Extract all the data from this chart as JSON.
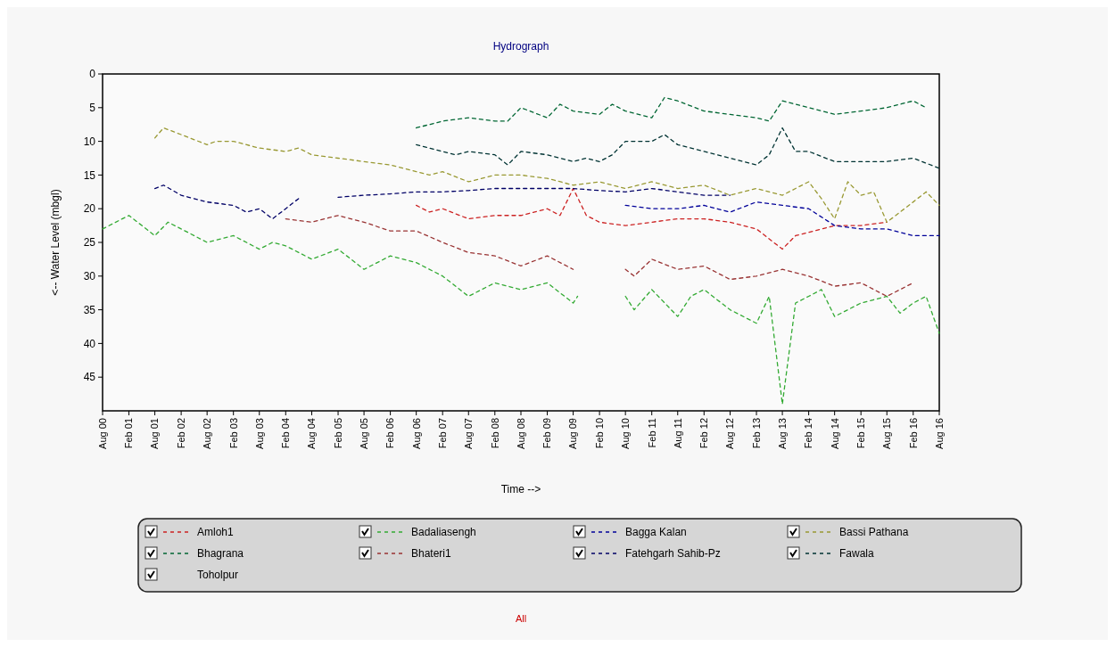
{
  "chart_data": {
    "type": "line",
    "title": "Hydrograph",
    "xlabel": "Time -->",
    "ylabel": "<-- Water Level (mbgl)",
    "annotations": [
      "All"
    ],
    "xlim": [
      "2000-08",
      "2016-08"
    ],
    "xticks": [
      {
        "value": "2000-08",
        "label": "Aug 00"
      },
      {
        "value": "2001-02",
        "label": "Feb 01"
      },
      {
        "value": "2001-08",
        "label": "Aug 01"
      },
      {
        "value": "2002-02",
        "label": "Feb 02"
      },
      {
        "value": "2002-08",
        "label": "Aug 02"
      },
      {
        "value": "2003-02",
        "label": "Feb 03"
      },
      {
        "value": "2003-08",
        "label": "Aug 03"
      },
      {
        "value": "2004-02",
        "label": "Feb 04"
      },
      {
        "value": "2004-08",
        "label": "Aug 04"
      },
      {
        "value": "2005-02",
        "label": "Feb 05"
      },
      {
        "value": "2005-08",
        "label": "Aug 05"
      },
      {
        "value": "2006-02",
        "label": "Feb 06"
      },
      {
        "value": "2006-08",
        "label": "Aug 06"
      },
      {
        "value": "2007-02",
        "label": "Feb 07"
      },
      {
        "value": "2007-08",
        "label": "Aug 07"
      },
      {
        "value": "2008-02",
        "label": "Feb 08"
      },
      {
        "value": "2008-08",
        "label": "Aug 08"
      },
      {
        "value": "2009-02",
        "label": "Feb 09"
      },
      {
        "value": "2009-08",
        "label": "Aug 09"
      },
      {
        "value": "2010-02",
        "label": "Feb 10"
      },
      {
        "value": "2010-08",
        "label": "Aug 10"
      },
      {
        "value": "2011-02",
        "label": "Feb 11"
      },
      {
        "value": "2011-08",
        "label": "Aug 11"
      },
      {
        "value": "2012-02",
        "label": "Feb 12"
      },
      {
        "value": "2012-08",
        "label": "Aug 12"
      },
      {
        "value": "2013-02",
        "label": "Feb 13"
      },
      {
        "value": "2013-08",
        "label": "Aug 13"
      },
      {
        "value": "2014-02",
        "label": "Feb 14"
      },
      {
        "value": "2014-08",
        "label": "Aug 14"
      },
      {
        "value": "2015-02",
        "label": "Feb 15"
      },
      {
        "value": "2015-08",
        "label": "Aug 15"
      },
      {
        "value": "2016-02",
        "label": "Feb 16"
      },
      {
        "value": "2016-08",
        "label": "Aug 16"
      }
    ],
    "ylim": [
      50,
      0
    ],
    "yticks": [
      0,
      5,
      10,
      15,
      20,
      25,
      30,
      35,
      40,
      45
    ],
    "grid": false,
    "legend": "bottom",
    "line_style": "dashed",
    "series": [
      {
        "name": "Amloh1",
        "color": "#cc2222",
        "x": [
          "2006-08",
          "2006-11",
          "2007-02",
          "2007-08",
          "2008-02",
          "2008-08",
          "2009-02",
          "2009-05",
          "2009-08",
          "2009-11",
          "2010-02",
          "2010-08",
          "2011-02",
          "2011-08",
          "2012-02",
          "2012-08",
          "2013-02",
          "2013-08",
          "2013-11",
          "2014-02",
          "2014-08",
          "2015-02",
          "2015-08"
        ],
        "values": [
          19.5,
          20.5,
          20,
          21.5,
          21,
          21,
          20,
          21,
          17,
          21,
          22,
          22.5,
          22,
          21.5,
          21.5,
          22,
          23,
          26,
          24,
          23.5,
          22.5,
          22.5,
          22
        ]
      },
      {
        "name": "Badaliasengh",
        "color": "#33aa33",
        "x": [
          "2000-08",
          "2001-02",
          "2001-08",
          "2001-11",
          "2002-02",
          "2002-08",
          "2003-02",
          "2003-08",
          "2003-11",
          "2004-02",
          "2004-08",
          "2005-02",
          "2005-08",
          "2006-02",
          "2006-08",
          "2007-02",
          "2007-08",
          "2008-02",
          "2008-08",
          "2009-02",
          "2009-08",
          "2009-09",
          "2010-02",
          "2010-08",
          "2010-10",
          "2011-02",
          "2011-08",
          "2011-11",
          "2012-02",
          "2012-08",
          "2013-02",
          "2013-05",
          "2013-08",
          "2013-11",
          "2014-02",
          "2014-05",
          "2014-08",
          "2015-02",
          "2015-08",
          "2015-11",
          "2016-02",
          "2016-05",
          "2016-08"
        ],
        "values": [
          23,
          21,
          24,
          22,
          23,
          25,
          24,
          26,
          25,
          25.5,
          27.5,
          26,
          29,
          27,
          28,
          30,
          33,
          31,
          32,
          31,
          34,
          33,
          null,
          33,
          35,
          32,
          36,
          33,
          32,
          35,
          37,
          33,
          49,
          34,
          33,
          32,
          36,
          34,
          33,
          35.5,
          34,
          33,
          38.5
        ]
      },
      {
        "name": "Bagga Kalan",
        "color": "#000099",
        "x": [
          "2010-08",
          "2011-02",
          "2011-08",
          "2012-02",
          "2012-08",
          "2013-02",
          "2013-08",
          "2014-02",
          "2014-08",
          "2015-02",
          "2015-08",
          "2016-02",
          "2016-08"
        ],
        "values": [
          19.5,
          20,
          20,
          19.5,
          20.5,
          19,
          19.5,
          20,
          22.5,
          23,
          23,
          24,
          24
        ]
      },
      {
        "name": "Bassi Pathana",
        "color": "#999933",
        "x": [
          "2001-08",
          "2001-10",
          "2002-02",
          "2002-08",
          "2002-10",
          "2003-02",
          "2003-08",
          "2004-02",
          "2004-05",
          "2004-08",
          "2005-02",
          "2005-08",
          "2006-02",
          "2006-08",
          "2006-11",
          "2007-02",
          "2007-08",
          "2008-02",
          "2008-08",
          "2009-02",
          "2009-08",
          "2010-02",
          "2010-08",
          "2011-02",
          "2011-08",
          "2012-02",
          "2012-08",
          "2013-02",
          "2013-08",
          "2014-02",
          "2014-05",
          "2014-08",
          "2014-11",
          "2015-02",
          "2015-05",
          "2015-08",
          "2016-02",
          "2016-05",
          "2016-08"
        ],
        "values": [
          9.5,
          8,
          9,
          10.5,
          10,
          10,
          11,
          11.5,
          11,
          12,
          12.5,
          13,
          13.5,
          14.5,
          15,
          14.5,
          16,
          15,
          15,
          15.5,
          16.5,
          16,
          17,
          16,
          17,
          16.5,
          18,
          17,
          18,
          16,
          18.5,
          21.5,
          16,
          18,
          17.5,
          22,
          19,
          17.5,
          19.5
        ]
      },
      {
        "name": "Bhagrana",
        "color": "#006633",
        "x": [
          "2006-08",
          "2007-02",
          "2007-08",
          "2008-02",
          "2008-05",
          "2008-08",
          "2009-02",
          "2009-05",
          "2009-08",
          "2010-02",
          "2010-05",
          "2010-08",
          "2011-02",
          "2011-05",
          "2011-08",
          "2012-02",
          "2012-08",
          "2013-02",
          "2013-05",
          "2013-08",
          "2014-02",
          "2014-08",
          "2015-02",
          "2015-08",
          "2016-02",
          "2016-05"
        ],
        "values": [
          8,
          7,
          6.5,
          7,
          7,
          5,
          6.5,
          4.5,
          5.5,
          6,
          4.5,
          5.5,
          6.5,
          3.5,
          4,
          5.5,
          6,
          6.5,
          7,
          4,
          5,
          6,
          5.5,
          5,
          4,
          5
        ]
      },
      {
        "name": "Bhateri1",
        "color": "#993333",
        "x": [
          "2004-02",
          "2004-08",
          "2005-02",
          "2005-08",
          "2006-02",
          "2006-08",
          "2007-02",
          "2007-08",
          "2008-02",
          "2008-08",
          "2009-02",
          "2009-08",
          "2010-02",
          "2010-08",
          "2010-10",
          "2011-02",
          "2011-08",
          "2012-02",
          "2012-08",
          "2013-02",
          "2013-08",
          "2014-02",
          "2014-08",
          "2015-02",
          "2015-08",
          "2016-02"
        ],
        "values": [
          21.5,
          22,
          21,
          22,
          23.3,
          23.3,
          25,
          26.5,
          27,
          28.5,
          27,
          29,
          null,
          29,
          30,
          27.5,
          29,
          28.5,
          30.5,
          30,
          29,
          30,
          31.5,
          31,
          33,
          31
        ]
      },
      {
        "name": "Fatehgarh Sahib-Pz",
        "color": "#000066",
        "x": [
          "2001-08",
          "2001-10",
          "2002-02",
          "2002-08",
          "2003-02",
          "2003-05",
          "2003-08",
          "2003-11",
          "2004-02",
          "2004-05",
          "2004-08",
          "2005-02",
          "2005-08",
          "2006-02",
          "2006-08",
          "2007-02",
          "2007-08",
          "2008-02",
          "2008-08",
          "2009-02",
          "2009-08",
          "2010-02",
          "2010-08",
          "2011-02",
          "2011-08",
          "2012-02",
          "2012-08"
        ],
        "values": [
          17,
          16.5,
          18,
          19,
          19.5,
          20.5,
          20,
          21.5,
          20,
          18.5,
          null,
          18.3,
          18,
          17.8,
          17.5,
          17.5,
          17.3,
          17,
          17,
          17,
          17,
          17.3,
          17.5,
          17,
          17.5,
          18,
          18
        ]
      },
      {
        "name": "Fawala",
        "color": "#003333",
        "x": [
          "2006-08",
          "2007-02",
          "2007-05",
          "2007-08",
          "2008-02",
          "2008-05",
          "2008-08",
          "2009-02",
          "2009-08",
          "2009-11",
          "2010-02",
          "2010-05",
          "2010-08",
          "2011-02",
          "2011-05",
          "2011-08",
          "2012-02",
          "2012-08",
          "2013-02",
          "2013-05",
          "2013-08",
          "2013-11",
          "2014-02",
          "2014-08",
          "2015-02",
          "2015-08",
          "2016-02",
          "2016-08"
        ],
        "values": [
          10.5,
          11.5,
          12,
          11.5,
          12,
          13.5,
          11.5,
          12,
          13,
          12.5,
          13,
          12,
          10,
          10,
          9,
          10.5,
          11.5,
          12.5,
          13.5,
          12,
          8,
          11.5,
          11.5,
          13,
          13,
          13,
          12.5,
          14
        ]
      },
      {
        "name": "Toholpur"
      }
    ]
  }
}
